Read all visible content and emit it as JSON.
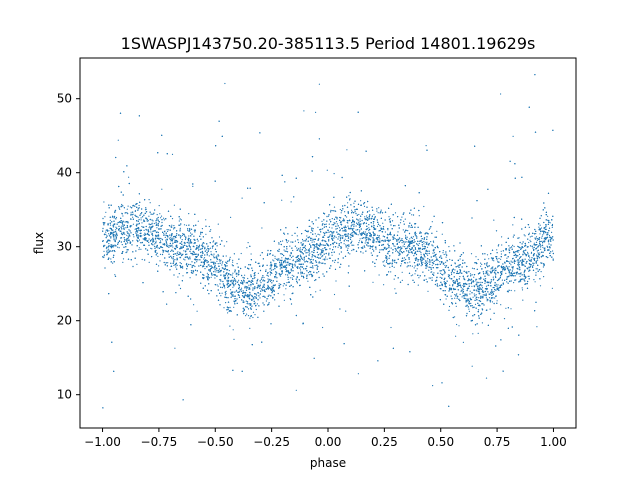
{
  "chart_data": {
    "type": "scatter",
    "title": "1SWASPJ143750.20-385113.5 Period 14801.19629s",
    "xlabel": "phase",
    "ylabel": "flux",
    "xlim": [
      -1.1,
      1.1
    ],
    "ylim": [
      5.5,
      55.5
    ],
    "xticks": [
      -1.0,
      -0.75,
      -0.5,
      -0.25,
      0.0,
      0.25,
      0.5,
      0.75,
      1.0
    ],
    "xtick_labels": [
      "−1.00",
      "−0.75",
      "−0.50",
      "−0.25",
      "0.00",
      "0.25",
      "0.50",
      "0.75",
      "1.00"
    ],
    "yticks": [
      10,
      20,
      30,
      40,
      50
    ],
    "ytick_labels": [
      "10",
      "20",
      "30",
      "40",
      "50"
    ],
    "grid": false,
    "marker_color": "#1f77b4",
    "trend": {
      "description_points": [
        {
          "x": -1.0,
          "y": 31.5
        },
        {
          "x": -0.85,
          "y": 32.5
        },
        {
          "x": -0.65,
          "y": 30.0
        },
        {
          "x": -0.35,
          "y": 24.0
        },
        {
          "x": -0.15,
          "y": 28.0
        },
        {
          "x": 0.1,
          "y": 32.5
        },
        {
          "x": 0.35,
          "y": 30.0
        },
        {
          "x": 0.65,
          "y": 24.0
        },
        {
          "x": 0.85,
          "y": 28.0
        },
        {
          "x": 1.0,
          "y": 31.5
        }
      ],
      "core_spread": 3.5,
      "outlier_range": [
        8,
        53.5
      ]
    }
  }
}
